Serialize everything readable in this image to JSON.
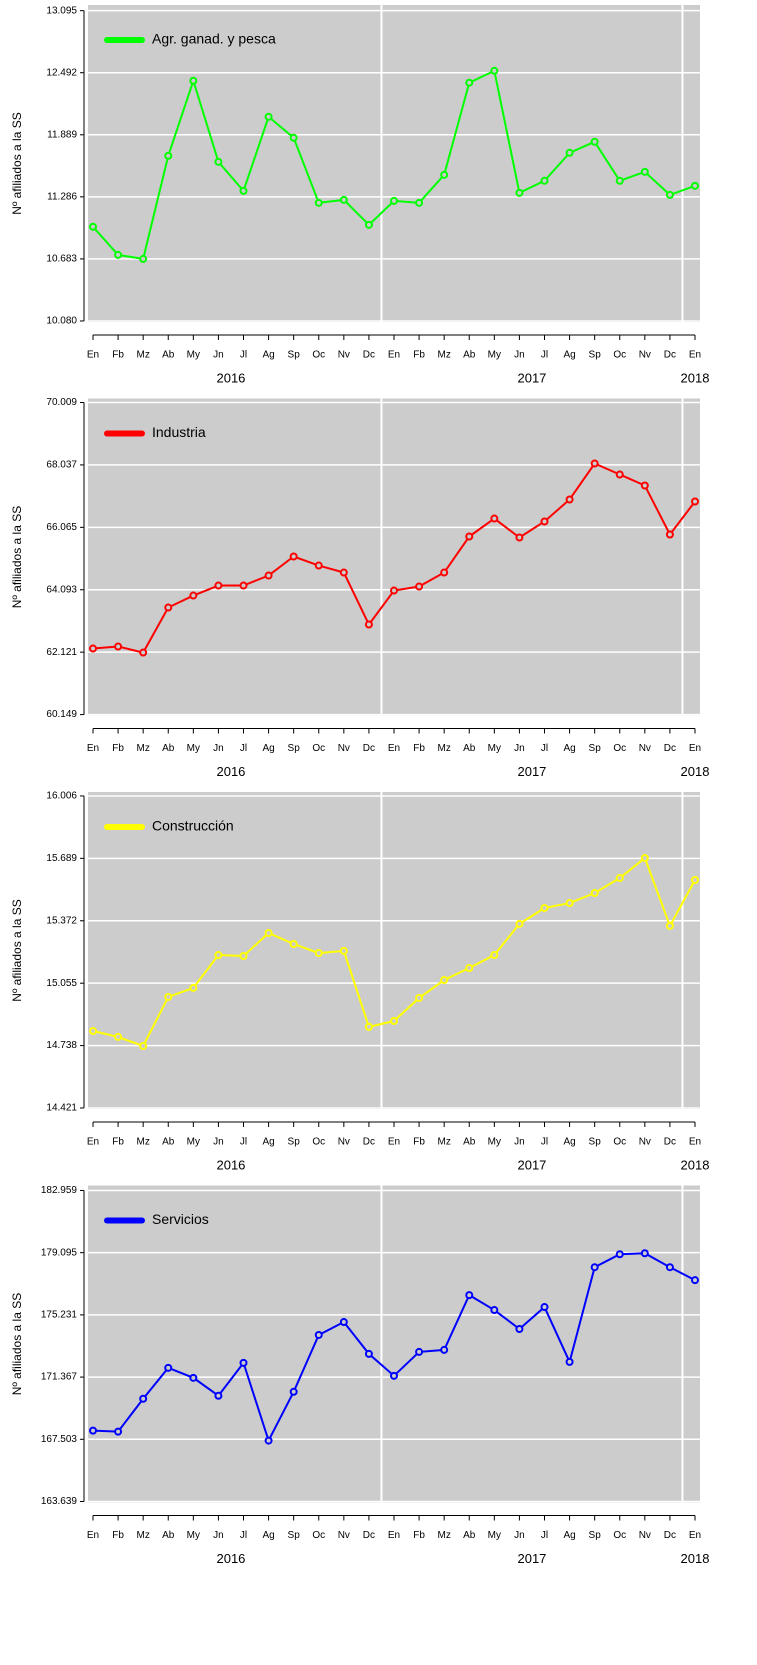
{
  "chart_data": [
    {
      "type": "line",
      "ylabel": "Nº afiliados a la SS",
      "categories": [
        "En",
        "Fb",
        "Mz",
        "Ab",
        "My",
        "Jn",
        "Jl",
        "Ag",
        "Sp",
        "Oc",
        "Nv",
        "Dc",
        "En",
        "Fb",
        "Mz",
        "Ab",
        "My",
        "Jn",
        "Jl",
        "Ag",
        "Sp",
        "Oc",
        "Nv",
        "Dc",
        "En"
      ],
      "x_group_labels": [
        "2016",
        "2017",
        "2018"
      ],
      "series": [
        {
          "name": "Agr. ganad. y pesca",
          "color": "#00ff00",
          "values": [
            10995,
            10722,
            10683,
            11685,
            12414,
            11626,
            11344,
            12064,
            11860,
            11228,
            11257,
            11014,
            11247,
            11228,
            11500,
            12395,
            12511,
            11325,
            11442,
            11714,
            11821,
            11442,
            11529,
            11305,
            11393
          ]
        }
      ],
      "ylim": [
        10070,
        13150
      ],
      "yticks": [
        {
          "value": 10080,
          "label": "10.080"
        },
        {
          "value": 10683,
          "label": "10.683"
        },
        {
          "value": 11286,
          "label": "11.286"
        },
        {
          "value": 11889,
          "label": "11.889"
        },
        {
          "value": 12492,
          "label": "12.492"
        },
        {
          "value": 13095,
          "label": "13.095"
        }
      ],
      "grid": true,
      "legend": "top-left"
    },
    {
      "type": "line",
      "ylabel": "Nº afiliados a la SS",
      "categories": [
        "En",
        "Fb",
        "Mz",
        "Ab",
        "My",
        "Jn",
        "Jl",
        "Ag",
        "Sp",
        "Oc",
        "Nv",
        "Dc",
        "En",
        "Fb",
        "Mz",
        "Ab",
        "My",
        "Jn",
        "Jl",
        "Ag",
        "Sp",
        "Oc",
        "Nv",
        "Dc",
        "En"
      ],
      "x_group_labels": [
        "2016",
        "2017",
        "2018"
      ],
      "series": [
        {
          "name": "Industria",
          "color": "#ff0000",
          "values": [
            62235,
            62299,
            62109,
            63531,
            63910,
            64226,
            64226,
            64542,
            65143,
            64858,
            64637,
            62994,
            64068,
            64195,
            64637,
            65775,
            66343,
            65743,
            66249,
            66944,
            68081,
            67734,
            67386,
            65838,
            66881
          ]
        }
      ],
      "ylim": [
        60120,
        70135
      ],
      "yticks": [
        {
          "value": 60149,
          "label": "60.149"
        },
        {
          "value": 62121,
          "label": "62.121"
        },
        {
          "value": 64093,
          "label": "64.093"
        },
        {
          "value": 66065,
          "label": "66.065"
        },
        {
          "value": 68037,
          "label": "68.037"
        },
        {
          "value": 70009,
          "label": "70.009"
        }
      ],
      "grid": true,
      "legend": "top-left"
    },
    {
      "type": "line",
      "ylabel": "Nº afiliados a la SS",
      "categories": [
        "En",
        "Fb",
        "Mz",
        "Ab",
        "My",
        "Jn",
        "Jl",
        "Ag",
        "Sp",
        "Oc",
        "Nv",
        "Dc",
        "En",
        "Fb",
        "Mz",
        "Ab",
        "My",
        "Jn",
        "Jl",
        "Ag",
        "Sp",
        "Oc",
        "Nv",
        "Dc",
        "En"
      ],
      "x_group_labels": [
        "2016",
        "2017",
        "2018"
      ],
      "series": [
        {
          "name": "Construcción",
          "color": "#ffff00",
          "values": [
            14812,
            14782,
            14736,
            14985,
            15031,
            15198,
            15193,
            15310,
            15254,
            15208,
            15219,
            14833,
            14863,
            14980,
            15071,
            15132,
            15198,
            15356,
            15437,
            15462,
            15513,
            15589,
            15691,
            15346,
            15579
          ]
        }
      ],
      "ylim": [
        14416,
        16026
      ],
      "yticks": [
        {
          "value": 14421,
          "label": "14.421"
        },
        {
          "value": 14738,
          "label": "14.738"
        },
        {
          "value": 15055,
          "label": "15.055"
        },
        {
          "value": 15372,
          "label": "15.372"
        },
        {
          "value": 15689,
          "label": "15.689"
        },
        {
          "value": 16006,
          "label": "16.006"
        }
      ],
      "grid": true,
      "legend": "top-left"
    },
    {
      "type": "line",
      "ylabel": "Nº afiliados a la SS",
      "categories": [
        "En",
        "Fb",
        "Mz",
        "Ab",
        "My",
        "Jn",
        "Jl",
        "Ag",
        "Sp",
        "Oc",
        "Nv",
        "Dc",
        "En",
        "Fb",
        "Mz",
        "Ab",
        "My",
        "Jn",
        "Jl",
        "Ag",
        "Sp",
        "Oc",
        "Nv",
        "Dc",
        "En"
      ],
      "x_group_labels": [
        "2016",
        "2017",
        "2018"
      ],
      "series": [
        {
          "name": "Servicios",
          "color": "#0000ff",
          "values": [
            168041,
            167979,
            170022,
            171941,
            171322,
            170208,
            172251,
            167423,
            170455,
            173984,
            174788,
            172808,
            171446,
            172931,
            173055,
            176459,
            175531,
            174355,
            175717,
            172313,
            178193,
            178997,
            179059,
            178193,
            177388
          ]
        }
      ],
      "ylim": [
        163577,
        183268
      ],
      "yticks": [
        {
          "value": 163639,
          "label": "163.639"
        },
        {
          "value": 167503,
          "label": "167.503"
        },
        {
          "value": 171367,
          "label": "171.367"
        },
        {
          "value": 175231,
          "label": "175.231"
        },
        {
          "value": 179095,
          "label": "179.095"
        },
        {
          "value": 182959,
          "label": "182.959"
        }
      ],
      "grid": true,
      "legend": "top-left"
    }
  ]
}
